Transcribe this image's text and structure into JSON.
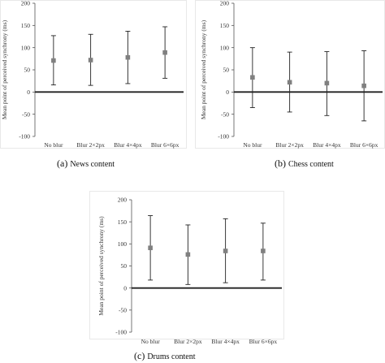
{
  "chart_data": [
    {
      "type": "scatter",
      "caption": {
        "letter": "(a)",
        "text": "News content"
      },
      "ylabel": "Mean point of perceived synchrony (ms)",
      "categories": [
        "No blur",
        "Blur 2×2px",
        "Blur 4×4px",
        "Blur 6×6px"
      ],
      "ylim": [
        -100,
        200
      ],
      "yticks": [
        200,
        150,
        100,
        50,
        0,
        -50,
        -100
      ],
      "values": [
        71,
        72,
        78,
        89
      ],
      "error_low": [
        16,
        15,
        19,
        31
      ],
      "error_high": [
        127,
        130,
        137,
        147
      ],
      "grid": false,
      "zero_line": true
    },
    {
      "type": "scatter",
      "caption": {
        "letter": "(b)",
        "text": "Chess content"
      },
      "ylabel": "Mean point of perceived synchrony (ms)",
      "categories": [
        "No blur",
        "Blur 2×2px",
        "Blur 4×4px",
        "Blur 6×6px"
      ],
      "ylim": [
        -100,
        200
      ],
      "yticks": [
        200,
        150,
        100,
        50,
        0,
        -50,
        -100
      ],
      "values": [
        33,
        22,
        20,
        14
      ],
      "error_low": [
        -35,
        -45,
        -53,
        -65
      ],
      "error_high": [
        100,
        90,
        91,
        93
      ],
      "grid": false,
      "zero_line": true
    },
    {
      "type": "scatter",
      "caption": {
        "letter": "(c)",
        "text": "Drums content"
      },
      "ylabel": "Mean point of perceived synchrony (ms)",
      "categories": [
        "No blur",
        "Blur 2×2px",
        "Blur 4×4px",
        "Blur 6×6px"
      ],
      "ylim": [
        -100,
        200
      ],
      "yticks": [
        200,
        150,
        100,
        50,
        0,
        -50,
        -100
      ],
      "values": [
        91,
        76,
        84,
        84
      ],
      "error_low": [
        18,
        8,
        12,
        18
      ],
      "error_high": [
        164,
        143,
        157,
        147
      ],
      "grid": false,
      "zero_line": true
    }
  ],
  "colors": {
    "axis": "#555555",
    "zero_line": "#222222",
    "error_bar": "#222222",
    "marker": "#808080",
    "frame": "#e8e8e8",
    "text": "#333333"
  }
}
